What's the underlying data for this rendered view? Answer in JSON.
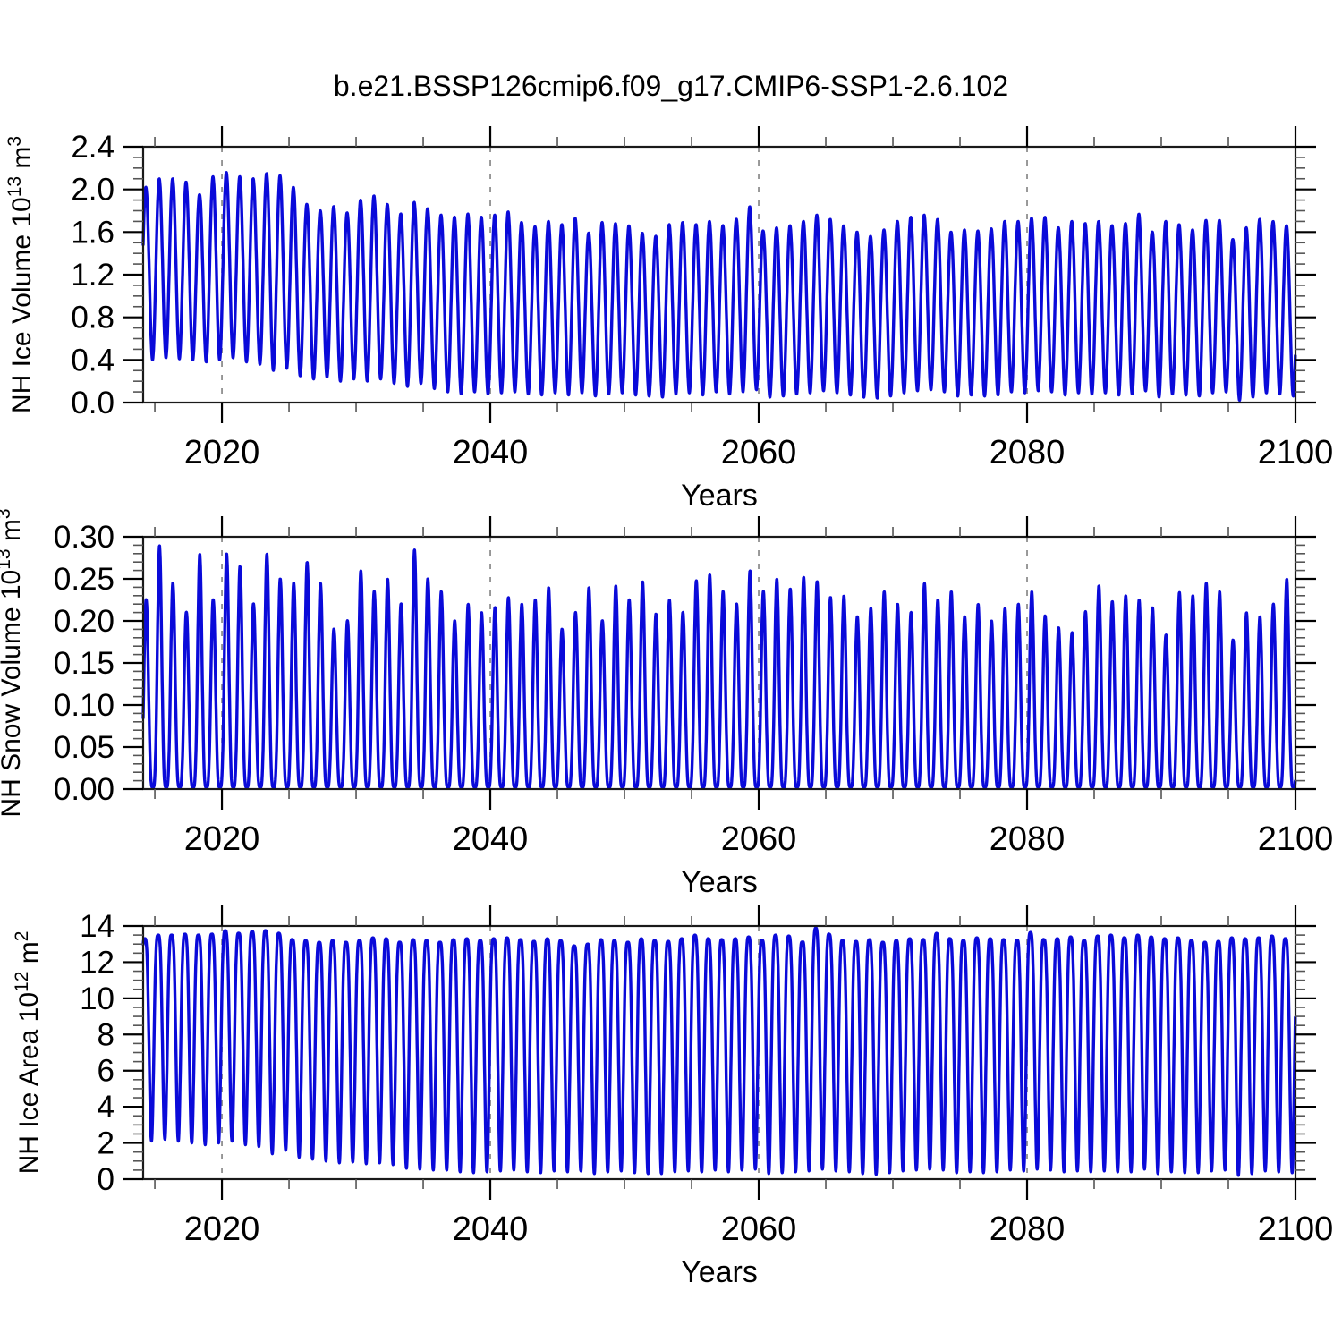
{
  "title": "b.e21.BSSP126cmip6.f09_g17.CMIP6-SSP1-2.6.102",
  "line_color": "#0a0ad9",
  "grid_color": "#8f8f8f",
  "years": [
    2014,
    2015,
    2016,
    2017,
    2018,
    2019,
    2020,
    2021,
    2022,
    2023,
    2024,
    2025,
    2026,
    2027,
    2028,
    2029,
    2030,
    2031,
    2032,
    2033,
    2034,
    2035,
    2036,
    2037,
    2038,
    2039,
    2040,
    2041,
    2042,
    2043,
    2044,
    2045,
    2046,
    2047,
    2048,
    2049,
    2050,
    2051,
    2052,
    2053,
    2054,
    2055,
    2056,
    2057,
    2058,
    2059,
    2060,
    2061,
    2062,
    2063,
    2064,
    2065,
    2066,
    2067,
    2068,
    2069,
    2070,
    2071,
    2072,
    2073,
    2074,
    2075,
    2076,
    2077,
    2078,
    2079,
    2080,
    2081,
    2082,
    2083,
    2084,
    2085,
    2086,
    2087,
    2088,
    2089,
    2090,
    2091,
    2092,
    2093,
    2094,
    2095,
    2096,
    2097,
    2098,
    2099,
    2100
  ],
  "chart_data": [
    {
      "type": "line",
      "id": "nh-ice-volume",
      "ylabel_parts": [
        [
          "NH Ice Volume 10",
          "13"
        ],
        [
          " m",
          "3"
        ]
      ],
      "xlabel": "Years",
      "ylim": [
        0,
        2.4
      ],
      "yticks": [
        0,
        0.4,
        0.8,
        1.2,
        1.6,
        2.0,
        2.4
      ],
      "yticklabels": [
        "0.0",
        "0.4",
        "0.8",
        "1.2",
        "1.6",
        "2.0",
        "2.4"
      ],
      "yminor": 0.1,
      "xlim": [
        2014.13,
        2100.0
      ],
      "xticks": [
        2020,
        2040,
        2060,
        2080,
        2100
      ],
      "xticklabels": [
        "2020",
        "2040",
        "2060",
        "2080",
        "2100"
      ],
      "xminor": 5,
      "grid": "vertical-dashed",
      "legend": "none",
      "seasonal": {
        "mode": "peak",
        "peak_frac": 0.33,
        "trough_frac": 0.83,
        "sharpness": 0.95
      },
      "annual_max": [
        2.02,
        2.1,
        2.1,
        2.07,
        1.95,
        2.12,
        2.16,
        2.12,
        2.1,
        2.15,
        2.13,
        2.02,
        1.86,
        1.8,
        1.84,
        1.78,
        1.9,
        1.94,
        1.86,
        1.77,
        1.88,
        1.82,
        1.76,
        1.74,
        1.77,
        1.74,
        1.76,
        1.79,
        1.69,
        1.65,
        1.7,
        1.67,
        1.73,
        1.59,
        1.69,
        1.68,
        1.66,
        1.59,
        1.56,
        1.67,
        1.69,
        1.67,
        1.7,
        1.66,
        1.72,
        1.84,
        1.61,
        1.64,
        1.66,
        1.7,
        1.76,
        1.72,
        1.66,
        1.6,
        1.56,
        1.62,
        1.7,
        1.74,
        1.76,
        1.72,
        1.6,
        1.62,
        1.61,
        1.63,
        1.7,
        1.7,
        1.73,
        1.74,
        1.64,
        1.7,
        1.68,
        1.7,
        1.66,
        1.68,
        1.77,
        1.6,
        1.7,
        1.67,
        1.62,
        1.71,
        1.71,
        1.53,
        1.64,
        1.72,
        1.7,
        1.66,
        1.68
      ],
      "annual_min": [
        0.4,
        0.42,
        0.41,
        0.4,
        0.38,
        0.4,
        0.42,
        0.38,
        0.36,
        0.3,
        0.32,
        0.25,
        0.22,
        0.24,
        0.2,
        0.22,
        0.2,
        0.22,
        0.18,
        0.15,
        0.18,
        0.13,
        0.1,
        0.08,
        0.1,
        0.08,
        0.09,
        0.1,
        0.08,
        0.07,
        0.09,
        0.07,
        0.09,
        0.06,
        0.08,
        0.09,
        0.07,
        0.06,
        0.05,
        0.08,
        0.09,
        0.07,
        0.1,
        0.08,
        0.1,
        0.12,
        0.05,
        0.06,
        0.08,
        0.09,
        0.11,
        0.09,
        0.07,
        0.05,
        0.04,
        0.06,
        0.09,
        0.11,
        0.12,
        0.1,
        0.06,
        0.07,
        0.06,
        0.07,
        0.1,
        0.09,
        0.11,
        0.1,
        0.07,
        0.09,
        0.08,
        0.09,
        0.07,
        0.08,
        0.11,
        0.05,
        0.08,
        0.07,
        0.06,
        0.09,
        0.1,
        0.02,
        0.05,
        0.09,
        0.08,
        0.06,
        0.07
      ]
    },
    {
      "type": "line",
      "id": "nh-snow-volume",
      "ylabel_parts": [
        [
          "NH Snow Volume 10",
          "13"
        ],
        [
          " m",
          "3"
        ]
      ],
      "xlabel": "Years",
      "ylim": [
        0,
        0.3
      ],
      "yticks": [
        0,
        0.05,
        0.1,
        0.15,
        0.2,
        0.25,
        0.3
      ],
      "yticklabels": [
        "0.00",
        "0.05",
        "0.10",
        "0.15",
        "0.20",
        "0.25",
        "0.30"
      ],
      "yminor": 0.01,
      "xlim": [
        2014.13,
        2100.0
      ],
      "xticks": [
        2020,
        2040,
        2060,
        2080,
        2100
      ],
      "xticklabels": [
        "2020",
        "2040",
        "2060",
        "2080",
        "2100"
      ],
      "xminor": 5,
      "grid": "vertical-dashed",
      "legend": "none",
      "seasonal": {
        "mode": "peak",
        "peak_frac": 0.35,
        "trough_frac": 0.85,
        "sharpness": 1.9
      },
      "annual_max": [
        0.225,
        0.29,
        0.245,
        0.21,
        0.28,
        0.225,
        0.28,
        0.265,
        0.22,
        0.28,
        0.25,
        0.245,
        0.27,
        0.245,
        0.19,
        0.2,
        0.26,
        0.235,
        0.25,
        0.22,
        0.285,
        0.25,
        0.235,
        0.2,
        0.22,
        0.21,
        0.216,
        0.228,
        0.22,
        0.225,
        0.24,
        0.19,
        0.21,
        0.24,
        0.2,
        0.242,
        0.225,
        0.247,
        0.208,
        0.225,
        0.21,
        0.248,
        0.255,
        0.235,
        0.22,
        0.26,
        0.235,
        0.25,
        0.238,
        0.252,
        0.247,
        0.228,
        0.23,
        0.205,
        0.215,
        0.235,
        0.22,
        0.21,
        0.245,
        0.225,
        0.235,
        0.205,
        0.22,
        0.2,
        0.215,
        0.22,
        0.235,
        0.206,
        0.192,
        0.186,
        0.211,
        0.242,
        0.223,
        0.23,
        0.225,
        0.216,
        0.183,
        0.234,
        0.23,
        0.245,
        0.235,
        0.177,
        0.21,
        0.205,
        0.22,
        0.25,
        0.22
      ],
      "annual_min_const": 0.002
    },
    {
      "type": "line",
      "id": "nh-ice-area",
      "ylabel_parts": [
        [
          "NH Ice Area 10",
          "12"
        ],
        [
          " m",
          "2"
        ]
      ],
      "xlabel": "Years",
      "ylim": [
        0,
        14
      ],
      "yticks": [
        0,
        2,
        4,
        6,
        8,
        10,
        12,
        14
      ],
      "yticklabels": [
        "0",
        "2",
        "4",
        "6",
        "8",
        "10",
        "12",
        "14"
      ],
      "yminor": 0.5,
      "xlim": [
        2014.13,
        2100.0
      ],
      "xticks": [
        2020,
        2040,
        2060,
        2080,
        2100
      ],
      "xticklabels": [
        "2020",
        "2040",
        "2060",
        "2080",
        "2100"
      ],
      "xminor": 5,
      "grid": "vertical-dashed",
      "legend": "none",
      "seasonal": {
        "mode": "dip",
        "peak_frac": 0.25,
        "trough_frac": 0.75,
        "sharpness": 1.8
      },
      "annual_max": [
        13.3,
        13.5,
        13.5,
        13.55,
        13.5,
        13.55,
        13.75,
        13.6,
        13.7,
        13.75,
        13.6,
        13.25,
        13.2,
        13.1,
        13.2,
        13.1,
        13.2,
        13.35,
        13.3,
        13.1,
        13.25,
        13.2,
        13.1,
        13.25,
        13.3,
        13.2,
        13.3,
        13.35,
        13.25,
        13.15,
        13.3,
        13.2,
        12.9,
        13.0,
        13.25,
        13.2,
        13.1,
        13.3,
        13.2,
        13.15,
        13.3,
        13.5,
        13.3,
        13.25,
        13.3,
        13.4,
        13.2,
        13.5,
        13.45,
        13.1,
        13.9,
        13.55,
        13.2,
        13.15,
        13.25,
        13.1,
        13.2,
        13.3,
        13.25,
        13.6,
        13.3,
        13.2,
        13.35,
        13.3,
        13.25,
        13.2,
        13.65,
        13.25,
        13.3,
        13.4,
        13.2,
        13.45,
        13.5,
        13.35,
        13.5,
        13.4,
        13.3,
        13.35,
        13.2,
        13.1,
        13.15,
        13.35,
        13.3,
        13.35,
        13.45,
        13.3,
        13.4
      ],
      "annual_min": [
        2.1,
        2.2,
        2.1,
        2.0,
        1.9,
        2.0,
        2.1,
        1.9,
        1.8,
        1.4,
        1.6,
        1.2,
        1.1,
        1.0,
        0.9,
        0.95,
        0.85,
        0.9,
        0.8,
        0.6,
        0.55,
        0.5,
        0.5,
        0.4,
        0.35,
        0.4,
        0.45,
        0.5,
        0.4,
        0.35,
        0.45,
        0.4,
        0.45,
        0.3,
        0.4,
        0.45,
        0.35,
        0.3,
        0.3,
        0.4,
        0.45,
        0.4,
        0.5,
        0.4,
        0.5,
        0.55,
        0.3,
        0.35,
        0.4,
        0.45,
        0.55,
        0.45,
        0.4,
        0.3,
        0.25,
        0.35,
        0.45,
        0.5,
        0.55,
        0.5,
        0.35,
        0.4,
        0.35,
        0.4,
        0.5,
        0.45,
        0.55,
        0.5,
        0.4,
        0.45,
        0.4,
        0.45,
        0.4,
        0.4,
        0.55,
        0.3,
        0.4,
        0.35,
        0.35,
        0.45,
        0.5,
        0.2,
        0.3,
        0.45,
        0.4,
        0.35,
        0.35
      ]
    }
  ]
}
